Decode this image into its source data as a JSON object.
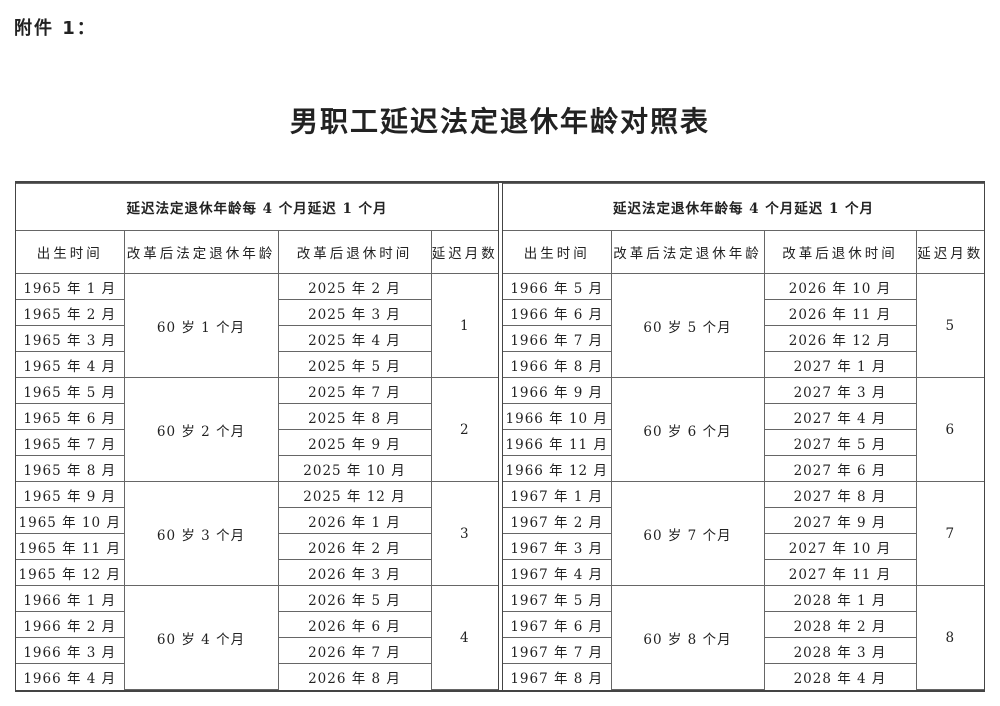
{
  "attachment_label": "附件 1：",
  "title": "男职工延迟法定退休年龄对照表",
  "tables": [
    {
      "header": "延迟法定退休年龄每 4 个月延迟 1 个月",
      "columns": [
        "出生时间",
        "改革后法定退休年龄",
        "改革后退休时间",
        "延迟月数"
      ],
      "groups": [
        {
          "age": "60 岁 1 个月",
          "months": "1",
          "rows": [
            [
              "1965 年 1 月",
              "2025 年 2 月"
            ],
            [
              "1965 年 2 月",
              "2025 年 3 月"
            ],
            [
              "1965 年 3 月",
              "2025 年 4 月"
            ],
            [
              "1965 年 4 月",
              "2025 年 5 月"
            ]
          ]
        },
        {
          "age": "60 岁 2 个月",
          "months": "2",
          "rows": [
            [
              "1965 年 5 月",
              "2025 年 7 月"
            ],
            [
              "1965 年 6 月",
              "2025 年 8 月"
            ],
            [
              "1965 年 7 月",
              "2025 年 9 月"
            ],
            [
              "1965 年 8 月",
              "2025 年 10 月"
            ]
          ]
        },
        {
          "age": "60 岁 3 个月",
          "months": "3",
          "rows": [
            [
              "1965 年 9 月",
              "2025 年 12 月"
            ],
            [
              "1965 年 10 月",
              "2026 年 1 月"
            ],
            [
              "1965 年 11 月",
              "2026 年 2 月"
            ],
            [
              "1965 年 12 月",
              "2026 年 3 月"
            ]
          ]
        },
        {
          "age": "60 岁 4 个月",
          "months": "4",
          "rows": [
            [
              "1966 年 1 月",
              "2026 年 5 月"
            ],
            [
              "1966 年 2 月",
              "2026 年 6 月"
            ],
            [
              "1966 年 3 月",
              "2026 年 7 月"
            ],
            [
              "1966 年 4 月",
              "2026 年 8 月"
            ]
          ]
        }
      ]
    },
    {
      "header": "延迟法定退休年龄每 4 个月延迟 1 个月",
      "columns": [
        "出生时间",
        "改革后法定退休年龄",
        "改革后退休时间",
        "延迟月数"
      ],
      "groups": [
        {
          "age": "60 岁 5 个月",
          "months": "5",
          "rows": [
            [
              "1966 年 5 月",
              "2026 年 10 月"
            ],
            [
              "1966 年 6 月",
              "2026 年 11 月"
            ],
            [
              "1966 年 7 月",
              "2026 年 12 月"
            ],
            [
              "1966 年 8 月",
              "2027 年 1 月"
            ]
          ]
        },
        {
          "age": "60 岁 6 个月",
          "months": "6",
          "rows": [
            [
              "1966 年 9 月",
              "2027 年 3 月"
            ],
            [
              "1966 年 10 月",
              "2027 年 4 月"
            ],
            [
              "1966 年 11 月",
              "2027 年 5 月"
            ],
            [
              "1966 年 12 月",
              "2027 年 6 月"
            ]
          ]
        },
        {
          "age": "60 岁 7 个月",
          "months": "7",
          "rows": [
            [
              "1967 年 1 月",
              "2027 年 8 月"
            ],
            [
              "1967 年 2 月",
              "2027 年 9 月"
            ],
            [
              "1967 年 3 月",
              "2027 年 10 月"
            ],
            [
              "1967 年 4 月",
              "2027 年 11 月"
            ]
          ]
        },
        {
          "age": "60 岁 8 个月",
          "months": "8",
          "rows": [
            [
              "1967 年 5 月",
              "2028 年 1 月"
            ],
            [
              "1967 年 6 月",
              "2028 年 2 月"
            ],
            [
              "1967 年 7 月",
              "2028 年 3 月"
            ],
            [
              "1967 年 8 月",
              "2028 年 4 月"
            ]
          ]
        }
      ]
    }
  ]
}
